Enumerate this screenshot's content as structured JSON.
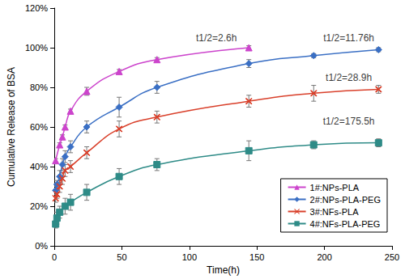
{
  "chart_data": {
    "type": "line",
    "x_label": "Time(h)",
    "y_label": "Cumulative Release of BSA",
    "xlim": [
      0,
      250
    ],
    "xticks": [
      0,
      50,
      100,
      150,
      200,
      250
    ],
    "ylim": [
      0,
      120
    ],
    "yticks": [
      {
        "value": 0,
        "label": "0%"
      },
      {
        "value": 20,
        "label": "20%"
      },
      {
        "value": 40,
        "label": "40%"
      },
      {
        "value": 60,
        "label": "60%"
      },
      {
        "value": 80,
        "label": "80%"
      },
      {
        "value": 100,
        "label": "100%"
      },
      {
        "value": 120,
        "label": "120%"
      }
    ],
    "grid": false,
    "legend": "lower right",
    "series": [
      {
        "name": "1#:NPs-PLA",
        "color": "#cc44cc",
        "marker": "triangle",
        "line_style": "solid",
        "x": [
          1,
          4,
          6,
          8,
          12,
          24,
          48,
          76,
          144
        ],
        "values": [
          43,
          51,
          55,
          60,
          68,
          78,
          88,
          94,
          100
        ],
        "errors": [
          1,
          1,
          1,
          1,
          1,
          2,
          1,
          1,
          1
        ]
      },
      {
        "name": "2#:NPs-PLA-PEG",
        "color": "#3a6fc4",
        "marker": "diamond",
        "line_style": "solid",
        "x": [
          1,
          2,
          4,
          6,
          8,
          12,
          24,
          48,
          76,
          144,
          192,
          240
        ],
        "values": [
          28,
          31,
          35,
          41,
          45,
          50,
          60,
          70,
          80,
          92,
          96,
          99
        ],
        "errors": [
          2,
          2,
          3,
          3,
          3,
          3,
          3,
          5,
          3,
          2,
          1,
          1
        ]
      },
      {
        "name": "3#:NFs-PLA",
        "color": "#d9402b",
        "marker": "x",
        "line_style": "solid",
        "x": [
          1,
          2,
          4,
          6,
          8,
          12,
          24,
          48,
          76,
          144,
          192,
          240
        ],
        "values": [
          24,
          26,
          30,
          34,
          38,
          40,
          47,
          59,
          65,
          73,
          77,
          79
        ],
        "errors": [
          2,
          2,
          3,
          3,
          3,
          3,
          3,
          4,
          3,
          3,
          4,
          2
        ]
      },
      {
        "name": "4#:NFs-PLA-PEG",
        "color": "#2e8b87",
        "marker": "square",
        "line_style": "solid",
        "x": [
          1,
          2,
          4,
          8,
          12,
          24,
          48,
          76,
          144,
          192,
          240
        ],
        "values": [
          11,
          14,
          17,
          20,
          22,
          27,
          35,
          41,
          48,
          51,
          52
        ],
        "errors": [
          2,
          3,
          3,
          4,
          4,
          4,
          4,
          3,
          5,
          2,
          2
        ]
      }
    ],
    "annotations": [
      {
        "text": "t1/2=2.6h",
        "x": 120,
        "y": 105
      },
      {
        "text": "t1/2=11.76h",
        "x": 218,
        "y": 105
      },
      {
        "text": "t1/2=28.9h",
        "x": 218,
        "y": 85
      },
      {
        "text": "t1/2=175.5h",
        "x": 218,
        "y": 63
      }
    ]
  }
}
